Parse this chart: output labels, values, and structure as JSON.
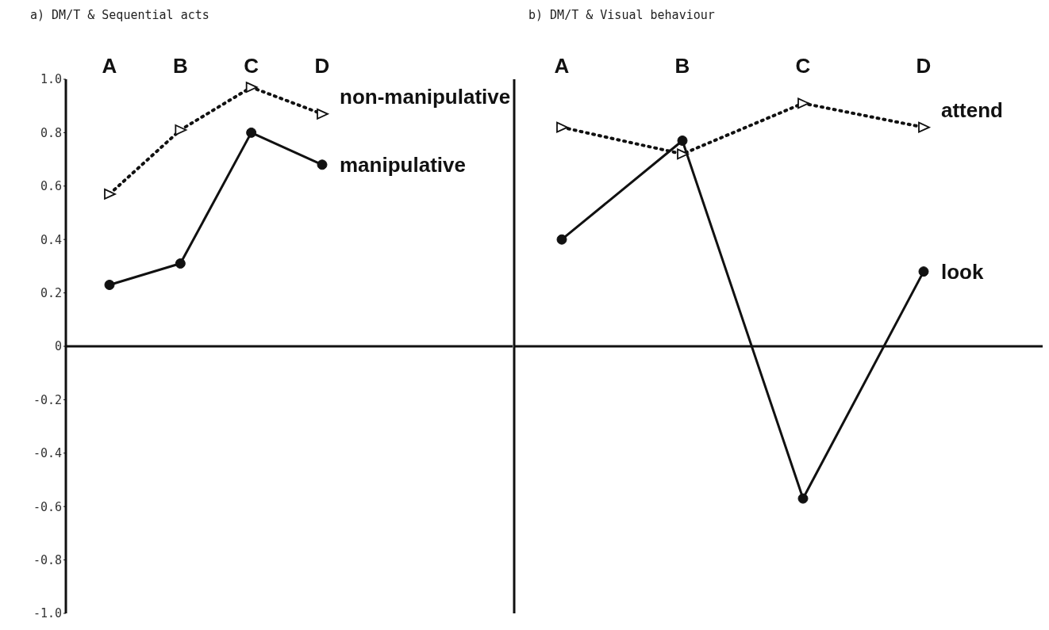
{
  "chart_data": [
    {
      "type": "line",
      "title": "a) DM/T & Sequential acts",
      "categories": [
        "A",
        "B",
        "C",
        "D"
      ],
      "series": [
        {
          "name": "non-manipulative",
          "color": "#111111",
          "values": [
            0.57,
            0.81,
            0.97,
            0.87
          ],
          "marker": "triangle",
          "line_style": "dotted"
        },
        {
          "name": "manipulative",
          "color": "#111111",
          "values": [
            0.23,
            0.31,
            0.8,
            0.68
          ],
          "marker": "circle",
          "line_style": "solid"
        }
      ],
      "ylim": [
        -1,
        1
      ],
      "yticks": [
        {
          "value": -1,
          "label": "-1.0"
        },
        -0.8,
        -0.6,
        -0.4,
        -0.2,
        0,
        0.2,
        0.4,
        0.6,
        0.8,
        {
          "value": 1,
          "label": "1.0"
        }
      ],
      "ref_lines": [
        {
          "axis": "y",
          "value": 0
        }
      ],
      "grid": false,
      "legend": false
    },
    {
      "type": "line",
      "title": "b) DM/T & Visual behaviour",
      "categories": [
        "A",
        "B",
        "C",
        "D"
      ],
      "series": [
        {
          "name": "attend",
          "color": "#111111",
          "values": [
            0.82,
            0.72,
            0.91,
            0.82
          ],
          "marker": "triangle",
          "line_style": "dotted"
        },
        {
          "name": "look",
          "color": "#111111",
          "values": [
            0.4,
            0.77,
            -0.57,
            0.28
          ],
          "marker": "circle",
          "line_style": "solid"
        }
      ],
      "ylim": [
        -1,
        1
      ],
      "yticks": [
        -1,
        -0.8,
        -0.6,
        -0.4,
        -0.2,
        0,
        0.2,
        0.4,
        0.6,
        0.8,
        1
      ],
      "ref_lines": [
        {
          "axis": "y",
          "value": 0
        }
      ],
      "tick_labels": "x",
      "grid": false,
      "legend": false
    }
  ]
}
